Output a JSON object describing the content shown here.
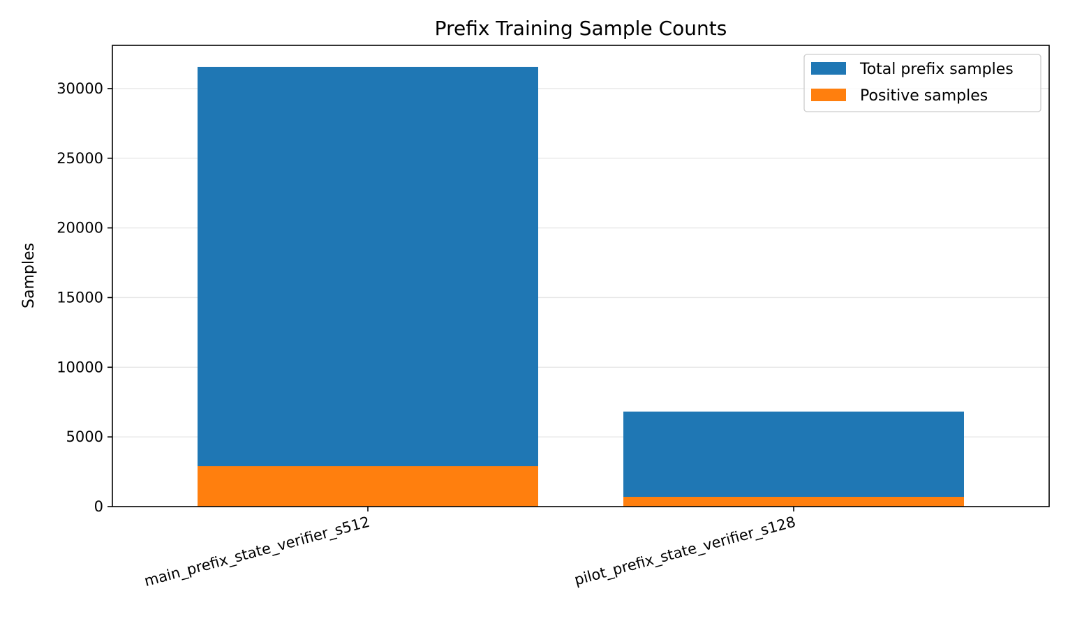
{
  "chart_data": {
    "type": "bar",
    "title": "Prefix Training Sample Counts",
    "xlabel": "",
    "ylabel": "Samples",
    "categories": [
      "main_prefix_state_verifier_s512",
      "pilot_prefix_state_verifier_s128"
    ],
    "series": [
      {
        "name": "Total prefix samples",
        "values": [
          31550,
          6820
        ],
        "color": "#1f77b4"
      },
      {
        "name": "Positive samples",
        "values": [
          2900,
          700
        ],
        "color": "#ff7f0e"
      }
    ],
    "ylim": [
      0,
      33100
    ],
    "yticks": [
      0,
      5000,
      10000,
      15000,
      20000,
      25000,
      30000
    ],
    "ytick_labels": [
      "0",
      "5000",
      "10000",
      "15000",
      "20000",
      "25000",
      "30000"
    ],
    "grid": "y",
    "legend_position": "top-right"
  }
}
